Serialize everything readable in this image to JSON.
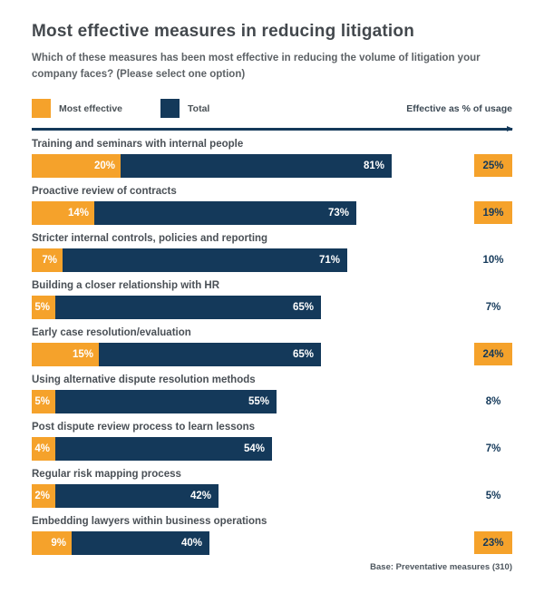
{
  "header": {
    "title": "Most effective measures in reducing litigation",
    "subtitle": "Which of these measures has been most effective in reducing the volume of litigation your company faces? (Please select one option)"
  },
  "legend": {
    "items": [
      {
        "label": "Most effective",
        "color": "#F5A22B"
      },
      {
        "label": "Total",
        "color": "#14395A"
      }
    ],
    "right_label": "Effective as % of usage"
  },
  "rows": [
    {
      "label": "Training and seminars with internal people",
      "most_effective_label": "20%",
      "total_label": "81%",
      "usage_label": "25%",
      "usage_boxed": true
    },
    {
      "label": "Proactive review of contracts",
      "most_effective_label": "14%",
      "total_label": "73%",
      "usage_label": "19%",
      "usage_boxed": true
    },
    {
      "label": "Stricter internal controls, policies and reporting",
      "most_effective_label": "7%",
      "total_label": "71%",
      "usage_label": "10%",
      "usage_boxed": false
    },
    {
      "label": "Building a closer relationship with HR",
      "most_effective_label": "5%",
      "total_label": "65%",
      "usage_label": "7%",
      "usage_boxed": false
    },
    {
      "label": "Early case resolution/evaluation",
      "most_effective_label": "15%",
      "total_label": "65%",
      "usage_label": "24%",
      "usage_boxed": true
    },
    {
      "label": "Using alternative dispute resolution methods",
      "most_effective_label": "5%",
      "total_label": "55%",
      "usage_label": "8%",
      "usage_boxed": false
    },
    {
      "label": "Post dispute review process to learn lessons",
      "most_effective_label": "4%",
      "total_label": "54%",
      "usage_label": "7%",
      "usage_boxed": false
    },
    {
      "label": "Regular risk mapping process",
      "most_effective_label": "2%",
      "total_label": "42%",
      "usage_label": "5%",
      "usage_boxed": false
    },
    {
      "label": "Embedding lawyers within business operations",
      "most_effective_label": "9%",
      "total_label": "40%",
      "usage_label": "23%",
      "usage_boxed": true
    }
  ],
  "footer": {
    "base_note": "Base: Preventative measures (310)"
  },
  "colors": {
    "orange": "#F5A22B",
    "navy": "#14395A",
    "title_text": "#43484d",
    "body_text": "#5d6266",
    "label_text": "#4a5056",
    "bar_value_text": "#ffffff"
  },
  "chart_data": {
    "type": "bar",
    "orientation": "horizontal",
    "title": "Most effective measures in reducing litigation",
    "subtitle": "Which of these measures has been most effective in reducing the volume of litigation your company faces? (Please select one option)",
    "categories": [
      "Training and seminars with internal people",
      "Proactive review of contracts",
      "Stricter internal controls, policies and reporting",
      "Building a closer relationship with HR",
      "Early case resolution/evaluation",
      "Using alternative dispute resolution methods",
      "Post dispute review process to learn lessons",
      "Regular risk mapping process",
      "Embedding lawyers within business operations"
    ],
    "series": [
      {
        "name": "Most effective",
        "values": [
          20,
          14,
          7,
          5,
          15,
          5,
          4,
          2,
          9
        ],
        "color": "#F5A22B"
      },
      {
        "name": "Total",
        "values": [
          81,
          73,
          71,
          65,
          65,
          55,
          54,
          42,
          40
        ],
        "color": "#14395A"
      }
    ],
    "annotations": {
      "name": "Effective as % of usage",
      "values": [
        25,
        19,
        10,
        7,
        24,
        8,
        7,
        5,
        23
      ],
      "highlighted": [
        true,
        true,
        false,
        false,
        true,
        false,
        false,
        false,
        true
      ]
    },
    "xlim": [
      0,
      100
    ],
    "grid": false,
    "legend_position": "top",
    "footnote": "Base: Preventative measures (310)"
  }
}
